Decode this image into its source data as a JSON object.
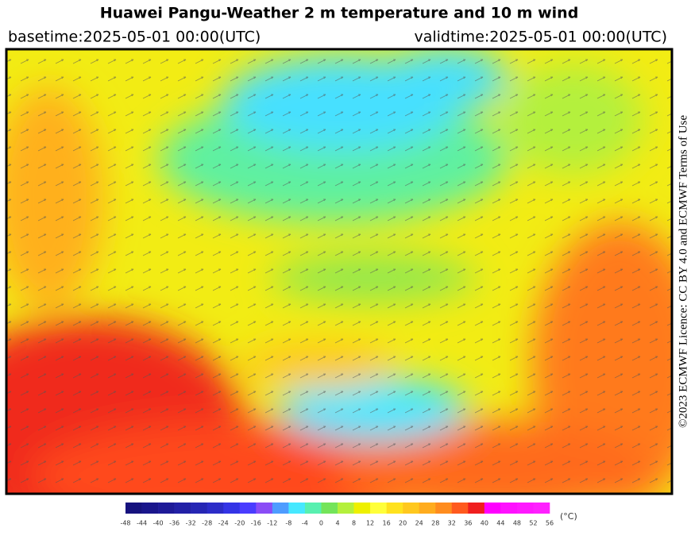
{
  "header": {
    "title": "Huawei Pangu-Weather  2 m temperature and 10 m wind",
    "basetime": "basetime:2025-05-01 00:00(UTC)",
    "validtime": "validtime:2025-05-01 00:00(UTC)"
  },
  "licence": "©2023 ECMWF Licence: CC BY 4.0 and ECMWF Terms of Use",
  "colorbar": {
    "ticks": [
      -48,
      -44,
      -40,
      -36,
      -32,
      -28,
      -24,
      -20,
      -16,
      -12,
      -8,
      -4,
      0,
      4,
      8,
      12,
      16,
      20,
      24,
      28,
      32,
      36,
      40,
      44,
      48,
      52,
      56
    ],
    "colors": [
      "#16127e",
      "#1a168c",
      "#1e1a98",
      "#2220a6",
      "#2626b4",
      "#2c2cc8",
      "#3434e6",
      "#4a3cff",
      "#8a4cf6",
      "#4e9cff",
      "#46e8ff",
      "#58f0b0",
      "#74e45a",
      "#b4f03c",
      "#eef000",
      "#ffff3a",
      "#ffe21e",
      "#ffc81e",
      "#ffac1e",
      "#ff8c1e",
      "#ff5a1e",
      "#f01e1e",
      "#ff00ff",
      "#ff10ff",
      "#ff18ff",
      "#ff20ff"
    ],
    "unit": "(°C)"
  }
}
